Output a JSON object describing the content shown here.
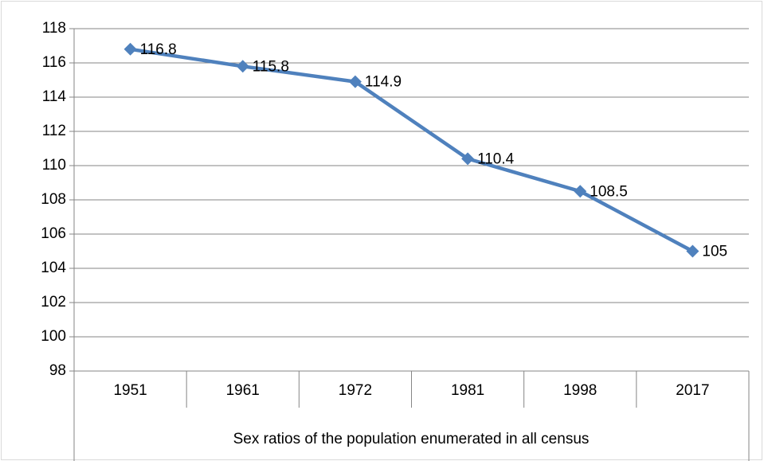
{
  "chart_data": {
    "type": "line",
    "x_label": "Sex ratios of the population enumerated in all census",
    "categories": [
      "1951",
      "1961",
      "1972",
      "1981",
      "1998",
      "2017"
    ],
    "values": [
      116.8,
      115.8,
      114.9,
      110.4,
      108.5,
      105
    ],
    "color": "#4f81bd",
    "ylim": [
      98,
      118
    ],
    "yticks": [
      98,
      100,
      102,
      104,
      106,
      108,
      110,
      112,
      114,
      116,
      118
    ],
    "grid": true
  }
}
